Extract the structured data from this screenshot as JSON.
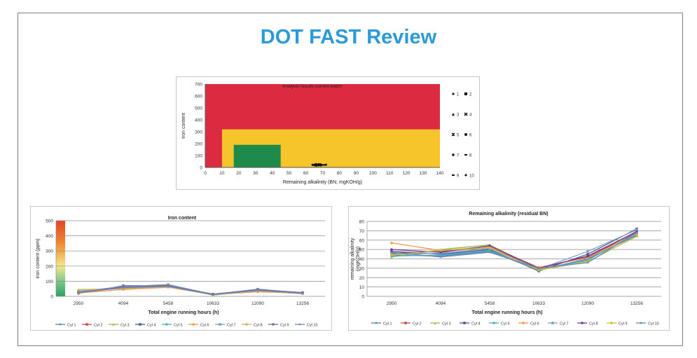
{
  "page_title": "DOT FAST Review",
  "colors": {
    "title": "#2c9ad4",
    "red_zone": "#dc2a41",
    "yellow_zone": "#f5c52b",
    "green_zone": "#1e8b4a"
  },
  "chart_data": [
    {
      "type": "scatter",
      "title": "Analysis results current batch",
      "xlabel": "Remaining alkalinity (BN, mgKOH/g)",
      "ylabel": "Iron content",
      "xlim": [
        0,
        140
      ],
      "ylim": [
        0,
        700
      ],
      "x_ticks": [
        "0",
        "10",
        "20",
        "30",
        "40",
        "50",
        "60",
        "70",
        "80",
        "90",
        "100",
        "110",
        "120",
        "130",
        "140"
      ],
      "y_ticks": [
        "0",
        "100",
        "200",
        "300",
        "400",
        "500",
        "600",
        "700"
      ],
      "zones": [
        {
          "name": "red",
          "color": "#dc2a41",
          "x": [
            0,
            140
          ],
          "y": [
            0,
            700
          ]
        },
        {
          "name": "yellow",
          "color": "#f5c52b",
          "x": [
            10,
            140
          ],
          "y": [
            0,
            320
          ]
        },
        {
          "name": "green",
          "color": "#1e8b4a",
          "x": [
            17,
            45
          ],
          "y": [
            0,
            190
          ]
        }
      ],
      "series": [
        {
          "name": "1",
          "marker": "diamond",
          "x": [
            64
          ],
          "y": [
            22
          ]
        },
        {
          "name": "2",
          "marker": "square",
          "x": [
            66
          ],
          "y": [
            20
          ]
        },
        {
          "name": "3",
          "marker": "triangle",
          "x": [
            65
          ],
          "y": [
            24
          ]
        },
        {
          "name": "4",
          "marker": "x",
          "x": [
            67
          ],
          "y": [
            21
          ]
        },
        {
          "name": "5",
          "marker": "star",
          "x": [
            68
          ],
          "y": [
            23
          ]
        },
        {
          "name": "6",
          "marker": "circle",
          "x": [
            69
          ],
          "y": [
            20
          ]
        },
        {
          "name": "7",
          "marker": "plus",
          "x": [
            66
          ],
          "y": [
            25
          ]
        },
        {
          "name": "8",
          "marker": "dash",
          "x": [
            70
          ],
          "y": [
            22
          ]
        },
        {
          "name": "9",
          "marker": "dash",
          "x": [
            71
          ],
          "y": [
            21
          ]
        },
        {
          "name": "10",
          "marker": "diamond",
          "x": [
            72
          ],
          "y": [
            23
          ]
        }
      ]
    },
    {
      "type": "line",
      "title": "Iron content",
      "xlabel": "Total engine running hours (h)",
      "ylabel": "iron content (ppm)",
      "ylim": [
        0,
        500
      ],
      "y_ticks": [
        "0",
        "100",
        "200",
        "300",
        "400",
        "500"
      ],
      "categories": [
        "2950",
        "4094",
        "5458",
        "10633",
        "12090",
        "13256"
      ],
      "series": [
        {
          "name": "Cyl 1",
          "color": "#4f81bd",
          "marker": "diamond",
          "values": [
            25,
            60,
            70,
            10,
            40,
            20
          ]
        },
        {
          "name": "Cyl 2",
          "color": "#c0504d",
          "marker": "square",
          "values": [
            30,
            55,
            75,
            12,
            35,
            22
          ]
        },
        {
          "name": "Cyl 3",
          "color": "#9bbb59",
          "marker": "triangle",
          "values": [
            45,
            50,
            65,
            8,
            38,
            18
          ]
        },
        {
          "name": "Cyl 4",
          "color": "#4a5b8c",
          "marker": "square",
          "values": [
            20,
            70,
            72,
            15,
            45,
            25
          ]
        },
        {
          "name": "Cyl 5",
          "color": "#4bacc6",
          "marker": "circle",
          "values": [
            28,
            58,
            68,
            9,
            42,
            19
          ]
        },
        {
          "name": "Cyl 6",
          "color": "#f79646",
          "marker": "circle",
          "values": [
            22,
            45,
            60,
            11,
            30,
            21
          ]
        },
        {
          "name": "Cyl 7",
          "color": "#7f9fc0",
          "marker": "square",
          "values": [
            32,
            65,
            78,
            13,
            48,
            23
          ]
        },
        {
          "name": "Cyl 8",
          "color": "#c6b85a",
          "marker": "circle",
          "values": [
            40,
            52,
            62,
            10,
            36,
            17
          ]
        },
        {
          "name": "Cyl 9",
          "color": "#8064a2",
          "marker": "circle",
          "values": [
            26,
            62,
            71,
            14,
            44,
            24
          ]
        },
        {
          "name": "Cyl 10",
          "color": "#6d86b8",
          "marker": "diamond",
          "values": [
            24,
            57,
            66,
            12,
            39,
            20
          ]
        }
      ]
    },
    {
      "type": "line",
      "title": "Remaining alkalinity (residual BN)",
      "xlabel": "Total engine running hours (h)",
      "ylabel": "remaining alkalinity (mgKOH/g)",
      "ylim": [
        0,
        80
      ],
      "y_ticks": [
        "0",
        "10",
        "20",
        "30",
        "40",
        "50",
        "60",
        "70",
        "80"
      ],
      "categories": [
        "2950",
        "4094",
        "5458",
        "10633",
        "12090",
        "13256"
      ],
      "series": [
        {
          "name": "Cyl 1",
          "color": "#4f81bd",
          "marker": "diamond",
          "values": [
            44,
            43,
            48,
            28,
            40,
            65
          ]
        },
        {
          "name": "Cyl 2",
          "color": "#c0504d",
          "marker": "square",
          "values": [
            46,
            48,
            52,
            30,
            42,
            68
          ]
        },
        {
          "name": "Cyl 3",
          "color": "#9bbb59",
          "marker": "triangle",
          "values": [
            42,
            50,
            55,
            29,
            38,
            70
          ]
        },
        {
          "name": "Cyl 4",
          "color": "#4a5b8c",
          "marker": "square",
          "values": [
            48,
            45,
            50,
            27,
            45,
            72
          ]
        },
        {
          "name": "Cyl 5",
          "color": "#4bacc6",
          "marker": "circle",
          "values": [
            43,
            44,
            49,
            28,
            39,
            66
          ]
        },
        {
          "name": "Cyl 6",
          "color": "#f79646",
          "marker": "circle",
          "values": [
            57,
            49,
            53,
            31,
            41,
            67
          ]
        },
        {
          "name": "Cyl 7",
          "color": "#7f9fc0",
          "marker": "square",
          "values": [
            45,
            46,
            51,
            29,
            48,
            71
          ]
        },
        {
          "name": "Cyl 8",
          "color": "#7030a0",
          "marker": "circle",
          "values": [
            50,
            47,
            54,
            30,
            43,
            69
          ]
        },
        {
          "name": "Cyl 9",
          "color": "#c6c13a",
          "marker": "circle",
          "values": [
            44,
            49,
            52,
            28,
            37,
            64
          ]
        },
        {
          "name": "Cyl 10",
          "color": "#6d86b8",
          "marker": "diamond",
          "values": [
            47,
            42,
            47,
            30,
            36,
            68
          ]
        }
      ]
    }
  ]
}
